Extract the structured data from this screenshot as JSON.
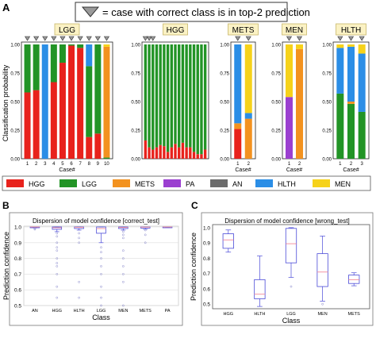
{
  "header": {
    "legend_text": "= case with correct class is in top-2 prediction",
    "marker_icon": "triangle-down-icon"
  },
  "panels": {
    "A": "A",
    "B": "B",
    "C": "C"
  },
  "colors": {
    "HGG": "#e8221c",
    "LGG": "#229426",
    "METS": "#f3921f",
    "PA": "#9b3fd0",
    "AN": "#6b6b6b",
    "HLTH": "#2b8ee6",
    "MEN": "#f6d21a",
    "box_edge": "#4a4ad8",
    "median_line": "#f28a9a",
    "tag_fill": "#fbf2c4",
    "tag_edge": "#c9b76a"
  },
  "panel_a": {
    "ylabel": "Classification probability",
    "xlabel": "Case#",
    "yticks": [
      "1.00",
      "0.75",
      "0.50",
      "0.25",
      "0.00"
    ],
    "legend": [
      "HGG",
      "LGG",
      "METS",
      "PA",
      "AN",
      "HLTH",
      "MEN"
    ]
  },
  "chart_data": [
    {
      "type": "bar",
      "stacked": true,
      "title": "LGG",
      "categories": [
        "1",
        "2",
        "3",
        "4",
        "5",
        "6",
        "7",
        "8",
        "9",
        "10"
      ],
      "top2_marked": [
        "1",
        "2",
        "3",
        "4",
        "5",
        "6",
        "7",
        "8",
        "9",
        "10"
      ],
      "series": [
        {
          "name": "HGG",
          "values": [
            0.58,
            0.6,
            0,
            0.67,
            0.84,
            0.99,
            0.97,
            0.19,
            0.22,
            0
          ]
        },
        {
          "name": "LGG",
          "values": [
            0.42,
            0.4,
            0,
            0.33,
            0.16,
            0.01,
            0.03,
            0.62,
            0.78,
            0.01
          ]
        },
        {
          "name": "METS",
          "values": [
            0,
            0,
            0,
            0,
            0,
            0,
            0,
            0,
            0,
            0.97
          ]
        },
        {
          "name": "HLTH",
          "values": [
            0,
            0,
            1.0,
            0,
            0,
            0,
            0,
            0.19,
            0,
            0
          ]
        },
        {
          "name": "MEN",
          "values": [
            0,
            0,
            0,
            0,
            0,
            0,
            0,
            0,
            0,
            0.02
          ]
        }
      ],
      "ylim": [
        0,
        1
      ]
    },
    {
      "type": "bar",
      "stacked": true,
      "title": "HGG",
      "categories": [
        "",
        "",
        "",
        "",
        "",
        "",
        "",
        "",
        "",
        "",
        "",
        "",
        "",
        "",
        "",
        "",
        ""
      ],
      "top2_marked_count": 3,
      "series": [
        {
          "name": "HGG",
          "values": [
            0.16,
            0.1,
            0.08,
            0.1,
            0.12,
            0.11,
            0.06,
            0.1,
            0.13,
            0.1,
            0.14,
            0.1,
            0.1,
            0.06,
            0.04,
            0.04,
            0.08
          ]
        },
        {
          "name": "LGG",
          "values": [
            0.84,
            0.9,
            0.92,
            0.9,
            0.88,
            0.89,
            0.94,
            0.9,
            0.87,
            0.9,
            0.86,
            0.9,
            0.9,
            0.94,
            0.96,
            0.96,
            0.92
          ]
        }
      ],
      "ylim": [
        0,
        1
      ]
    },
    {
      "type": "bar",
      "stacked": true,
      "title": "METS",
      "categories": [
        "1",
        "2"
      ],
      "top2_marked": [
        "1",
        "2"
      ],
      "series": [
        {
          "name": "HGG",
          "values": [
            0.26,
            0
          ]
        },
        {
          "name": "METS",
          "values": [
            0.05,
            0.35
          ]
        },
        {
          "name": "HLTH",
          "values": [
            0.69,
            0.05
          ]
        },
        {
          "name": "MEN",
          "values": [
            0,
            0.6
          ]
        }
      ],
      "ylim": [
        0,
        1
      ]
    },
    {
      "type": "bar",
      "stacked": true,
      "title": "MEN",
      "categories": [
        "1",
        "2"
      ],
      "top2_marked": [
        "1",
        "2"
      ],
      "series": [
        {
          "name": "PA",
          "values": [
            0.54,
            0
          ]
        },
        {
          "name": "METS",
          "values": [
            0,
            0.96
          ]
        },
        {
          "name": "MEN",
          "values": [
            0.46,
            0.04
          ]
        }
      ],
      "ylim": [
        0,
        1
      ]
    },
    {
      "type": "bar",
      "stacked": true,
      "title": "HLTH",
      "categories": [
        "1",
        "2",
        "3"
      ],
      "top2_marked": [
        "1",
        "2",
        "3"
      ],
      "series": [
        {
          "name": "LGG",
          "values": [
            0.57,
            0.48,
            0.41
          ]
        },
        {
          "name": "METS",
          "values": [
            0,
            0.02,
            0
          ]
        },
        {
          "name": "HLTH",
          "values": [
            0.4,
            0.48,
            0.51
          ]
        },
        {
          "name": "MEN",
          "values": [
            0.03,
            0.02,
            0.08
          ]
        }
      ],
      "ylim": [
        0,
        1
      ]
    },
    {
      "type": "box",
      "title": "Dispersion of model confidence [correct_test]",
      "xlabel": "Class",
      "ylabel": "Prediction confidence",
      "categories": [
        "AN",
        "HGG",
        "HLTH",
        "LGG",
        "MEN",
        "METS",
        "PA"
      ],
      "boxes": [
        {
          "q1": 0.998,
          "median": 1.0,
          "q3": 1.0,
          "min": 0.995,
          "max": 1.0
        },
        {
          "q1": 0.985,
          "median": 0.995,
          "q3": 1.0,
          "min": 0.97,
          "max": 1.0
        },
        {
          "q1": 0.99,
          "median": 0.998,
          "q3": 1.0,
          "min": 0.98,
          "max": 1.0
        },
        {
          "q1": 0.96,
          "median": 0.99,
          "q3": 1.0,
          "min": 0.9,
          "max": 1.0
        },
        {
          "q1": 0.99,
          "median": 0.997,
          "q3": 1.0,
          "min": 0.98,
          "max": 1.0
        },
        {
          "q1": 0.993,
          "median": 0.999,
          "q3": 1.0,
          "min": 0.985,
          "max": 1.0
        },
        {
          "q1": 0.999,
          "median": 1.0,
          "q3": 1.0,
          "min": 0.998,
          "max": 1.0
        }
      ],
      "outliers": [
        [
          0.99,
          0.985
        ],
        [
          0.96,
          0.94,
          0.9,
          0.87,
          0.85,
          0.8,
          0.77,
          0.75,
          0.7,
          0.62,
          0.55
        ],
        [
          0.96,
          0.93,
          0.9,
          0.65,
          0.55
        ],
        [
          0.87,
          0.84,
          0.8,
          0.75,
          0.7,
          0.62,
          0.55,
          0.5
        ],
        [
          0.97,
          0.95,
          0.93,
          0.85,
          0.8,
          0.75,
          0.7,
          0.65,
          0.5
        ],
        [
          0.98,
          0.95,
          0.9
        ],
        []
      ],
      "yticks": [
        "1.0",
        "0.9",
        "0.8",
        "0.7",
        "0.6",
        "0.5"
      ],
      "ylim": [
        0.5,
        1.005
      ]
    },
    {
      "type": "box",
      "title": "Dispersion of model confidence [wrong_test]",
      "xlabel": "Class",
      "ylabel": "Prediction confidence",
      "categories": [
        "HGG",
        "HLTH",
        "LGG",
        "MEN",
        "METS"
      ],
      "boxes": [
        {
          "q1": 0.865,
          "median": 0.92,
          "q3": 0.96,
          "min": 0.84,
          "max": 0.985
        },
        {
          "q1": 0.535,
          "median": 0.565,
          "q3": 0.66,
          "min": 0.485,
          "max": 0.815
        },
        {
          "q1": 0.77,
          "median": 0.895,
          "q3": 0.995,
          "min": 0.675,
          "max": 1.0
        },
        {
          "q1": 0.615,
          "median": 0.71,
          "q3": 0.83,
          "min": 0.52,
          "max": 0.945
        },
        {
          "q1": 0.635,
          "median": 0.66,
          "q3": 0.69,
          "min": 0.62,
          "max": 0.705
        }
      ],
      "outliers": [
        [],
        [],
        [
          0.615
        ],
        [
          0.5
        ],
        []
      ],
      "yticks": [
        "1.0",
        "0.9",
        "0.8",
        "0.7",
        "0.6",
        "0.5"
      ],
      "ylim": [
        0.47,
        1.02
      ]
    }
  ]
}
